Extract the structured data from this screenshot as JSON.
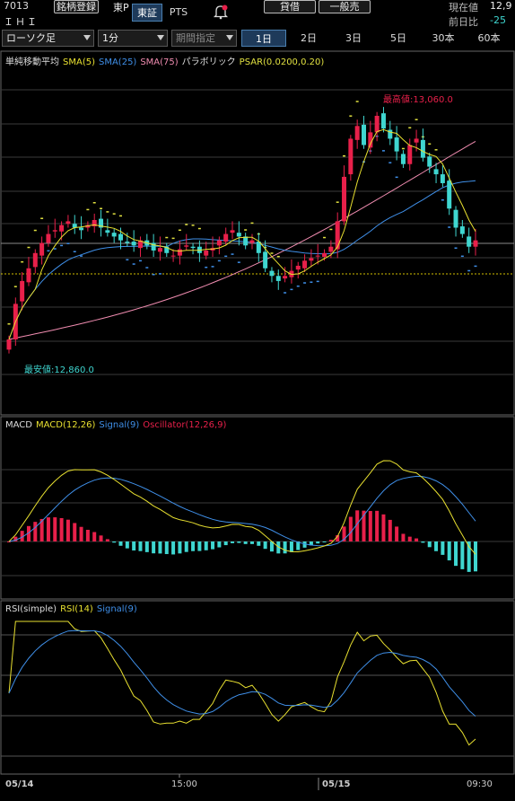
{
  "header": {
    "code": "7013",
    "name": "ＩＨＩ",
    "register_label": "銘柄登録",
    "exchange_label": "東P",
    "markets": [
      {
        "label": "東証",
        "active": true
      },
      {
        "label": "PTS",
        "active": false
      }
    ],
    "alert_icon": "alert-bell-icon",
    "lend_label": "貸借",
    "general_label": "一般売",
    "price_label": "現在値",
    "price_value": "12,9",
    "change_label": "前日比",
    "change_value": "-25"
  },
  "toolbar": {
    "chart_type": "ローソク足",
    "interval": "1分",
    "period_placeholder": "期間指定",
    "periods": [
      {
        "label": "1日",
        "active": true
      },
      {
        "label": "2日",
        "active": false
      },
      {
        "label": "3日",
        "active": false
      },
      {
        "label": "5日",
        "active": false
      },
      {
        "label": "30本",
        "active": false
      },
      {
        "label": "60本",
        "active": false
      }
    ]
  },
  "colors": {
    "up": "#e8204a",
    "down": "#3fd6d0",
    "sma5": "#e8e030",
    "sma25": "#3f8fe8",
    "sma75": "#f08cb0",
    "psar": "#e0e040",
    "grid": "#555555",
    "bg": "#000000"
  },
  "main_panel": {
    "legend": {
      "title": "単純移動平均",
      "sma5": "SMA(5)",
      "sma25": "SMA(25)",
      "sma75": "SMA(75)",
      "psar_title": "パラボリック",
      "psar": "PSAR(0.0200,0.20)"
    },
    "high_label": "最高値:13,060.0",
    "low_label": "最安値:12,860.0"
  },
  "macd_panel": {
    "legend": {
      "title": "MACD",
      "macd": "MACD(12,26)",
      "signal": "Signal(9)",
      "osc": "Oscillator(12,26,9)"
    }
  },
  "rsi_panel": {
    "legend": {
      "title": "RSI(simple)",
      "rsi": "RSI(14)",
      "signal": "Signal(9)"
    }
  },
  "x_axis": {
    "labels": [
      "05/14",
      "15:00",
      "05/15",
      "09:30"
    ]
  },
  "chart_data": {
    "type": "candlestick",
    "price_high": 13060.0,
    "price_low": 12860.0,
    "close": [
      12872,
      12900,
      12918,
      12928,
      12940,
      12948,
      12955,
      12958,
      12962,
      12965,
      12960,
      12958,
      12962,
      12966,
      12960,
      12956,
      12953,
      12950,
      12948,
      12946,
      12950,
      12946,
      12942,
      12944,
      12940,
      12938,
      12943,
      12946,
      12944,
      12940,
      12942,
      12944,
      12950,
      12955,
      12958,
      12953,
      12946,
      12950,
      12940,
      12928,
      12922,
      12918,
      12922,
      12926,
      12930,
      12934,
      12936,
      12938,
      12940,
      12945,
      12965,
      13000,
      13030,
      13040,
      13025,
      13035,
      13048,
      13038,
      13030,
      13020,
      13010,
      13025,
      13030,
      13015,
      13008,
      13002,
      12995,
      12975,
      12960,
      12955,
      12945,
      12950
    ]
  }
}
